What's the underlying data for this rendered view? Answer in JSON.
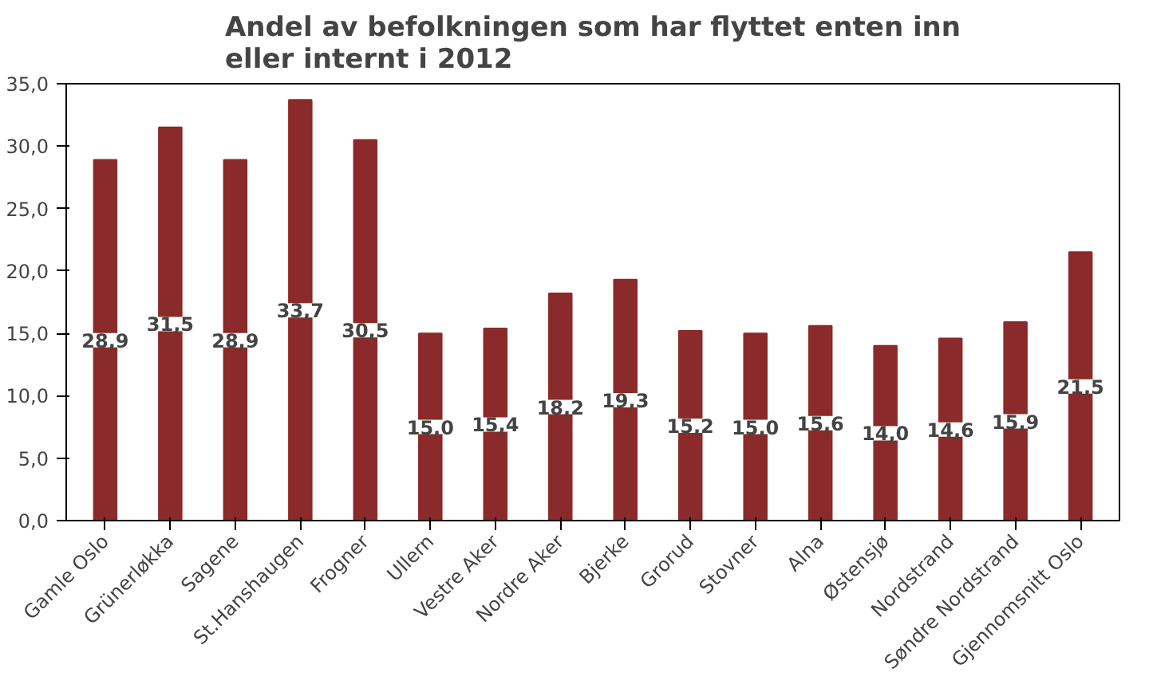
{
  "chart_data": {
    "type": "bar",
    "title": "Andel av befolkningen som har flyttet enten inn\neller internt i 2012",
    "categories": [
      "Gamle Oslo",
      "Grünerløkka",
      "Sagene",
      "St.Hanshaugen",
      "Frogner",
      "Ullern",
      "Vestre Aker",
      "Nordre Aker",
      "Bjerke",
      "Grorud",
      "Stovner",
      "Alna",
      "Østensjø",
      "Nordstrand",
      "Søndre Nordstrand",
      "Gjennomsnitt Oslo"
    ],
    "values": [
      28.9,
      31.5,
      28.9,
      33.7,
      30.5,
      15.0,
      15.4,
      18.2,
      19.3,
      15.2,
      15.0,
      15.6,
      14.0,
      14.6,
      15.9,
      21.5
    ],
    "value_labels": [
      "28,9",
      "31,5",
      "28,9",
      "33,7",
      "30,5",
      "15,0",
      "15,4",
      "18,2",
      "19,3",
      "15,2",
      "15,0",
      "15,6",
      "14,0",
      "14,6",
      "15,9",
      "21,5"
    ],
    "color": "#8b2a2a",
    "ylim": [
      0,
      35
    ],
    "yticks": [
      {
        "value": 0,
        "label": "0,0"
      },
      {
        "value": 5,
        "label": "5,0"
      },
      {
        "value": 10,
        "label": "10,0"
      },
      {
        "value": 15,
        "label": "15,0"
      },
      {
        "value": 20,
        "label": "20,0"
      },
      {
        "value": 25,
        "label": "25,0"
      },
      {
        "value": 30,
        "label": "30,0"
      },
      {
        "value": 35,
        "label": "35,0"
      }
    ],
    "grid": false
  }
}
